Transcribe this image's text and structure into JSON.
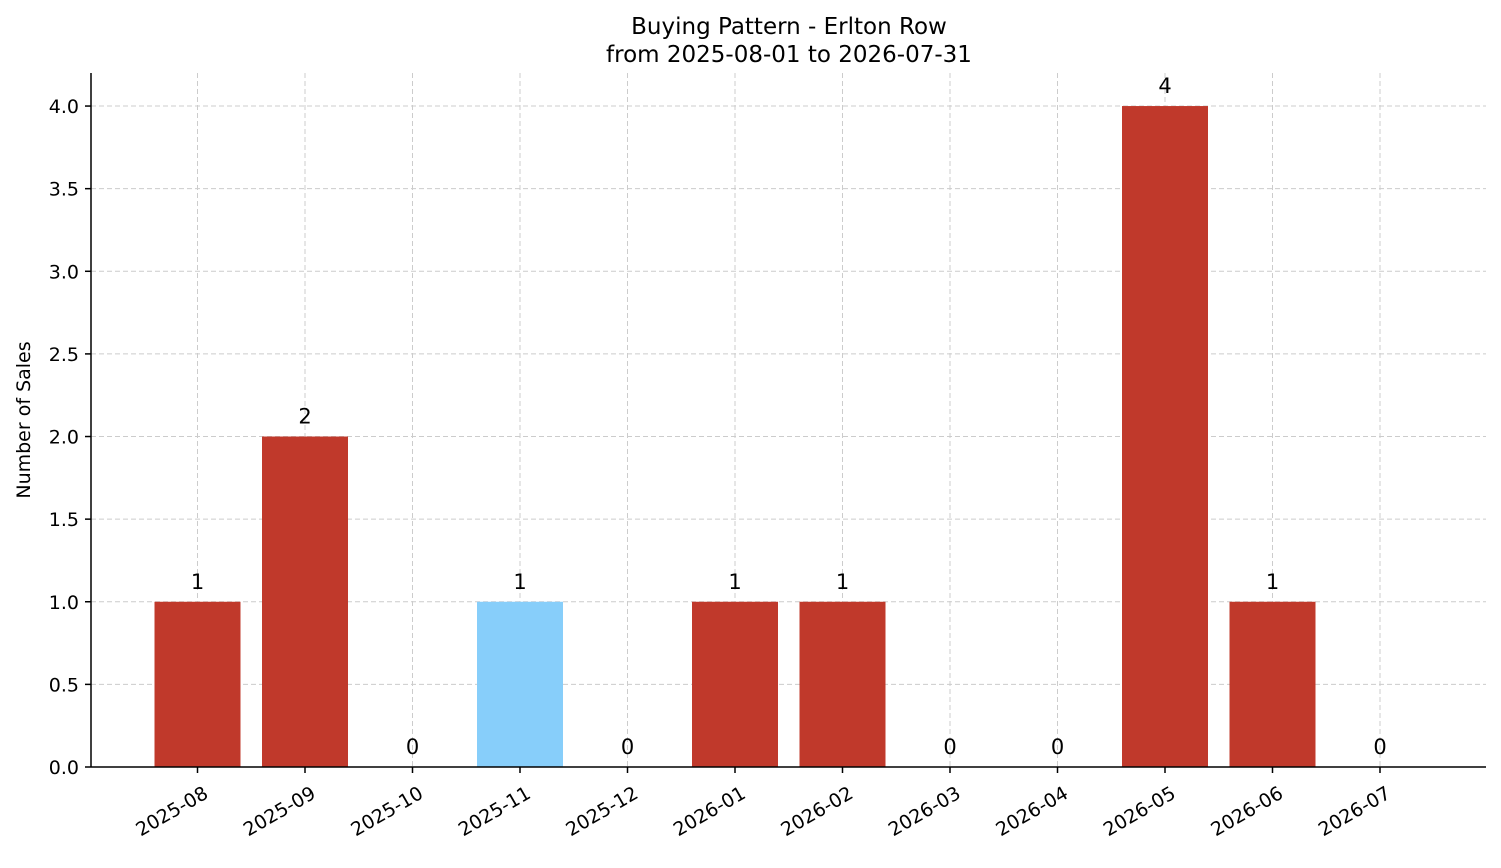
{
  "chart_data": {
    "type": "bar",
    "title": "Buying Pattern - Erlton Row",
    "subtitle": "from 2025-08-01 to 2026-07-31",
    "xlabel": "",
    "ylabel": "Number of Sales",
    "categories": [
      "2025-08",
      "2025-09",
      "2025-10",
      "2025-11",
      "2025-12",
      "2026-01",
      "2026-02",
      "2026-03",
      "2026-04",
      "2026-05",
      "2026-06",
      "2026-07"
    ],
    "values": [
      1,
      2,
      0,
      1,
      0,
      1,
      1,
      0,
      0,
      4,
      1,
      0
    ],
    "data_labels": [
      "1",
      "2",
      "0",
      "1",
      "0",
      "1",
      "1",
      "0",
      "0",
      "4",
      "1",
      "0"
    ],
    "highlight_index": 3,
    "ylim": [
      0,
      4.2
    ],
    "yticks": [
      0.0,
      0.5,
      1.0,
      1.5,
      2.0,
      2.5,
      3.0,
      3.5,
      4.0
    ],
    "ytick_labels": [
      "0.0",
      "0.5",
      "1.0",
      "1.5",
      "2.0",
      "2.5",
      "3.0",
      "3.5",
      "4.0"
    ],
    "grid": true,
    "legend": "none",
    "colors": {
      "bar": "#c0392b",
      "highlight": "#87cefa",
      "grid": "#cccccc",
      "axis": "#000000"
    }
  }
}
